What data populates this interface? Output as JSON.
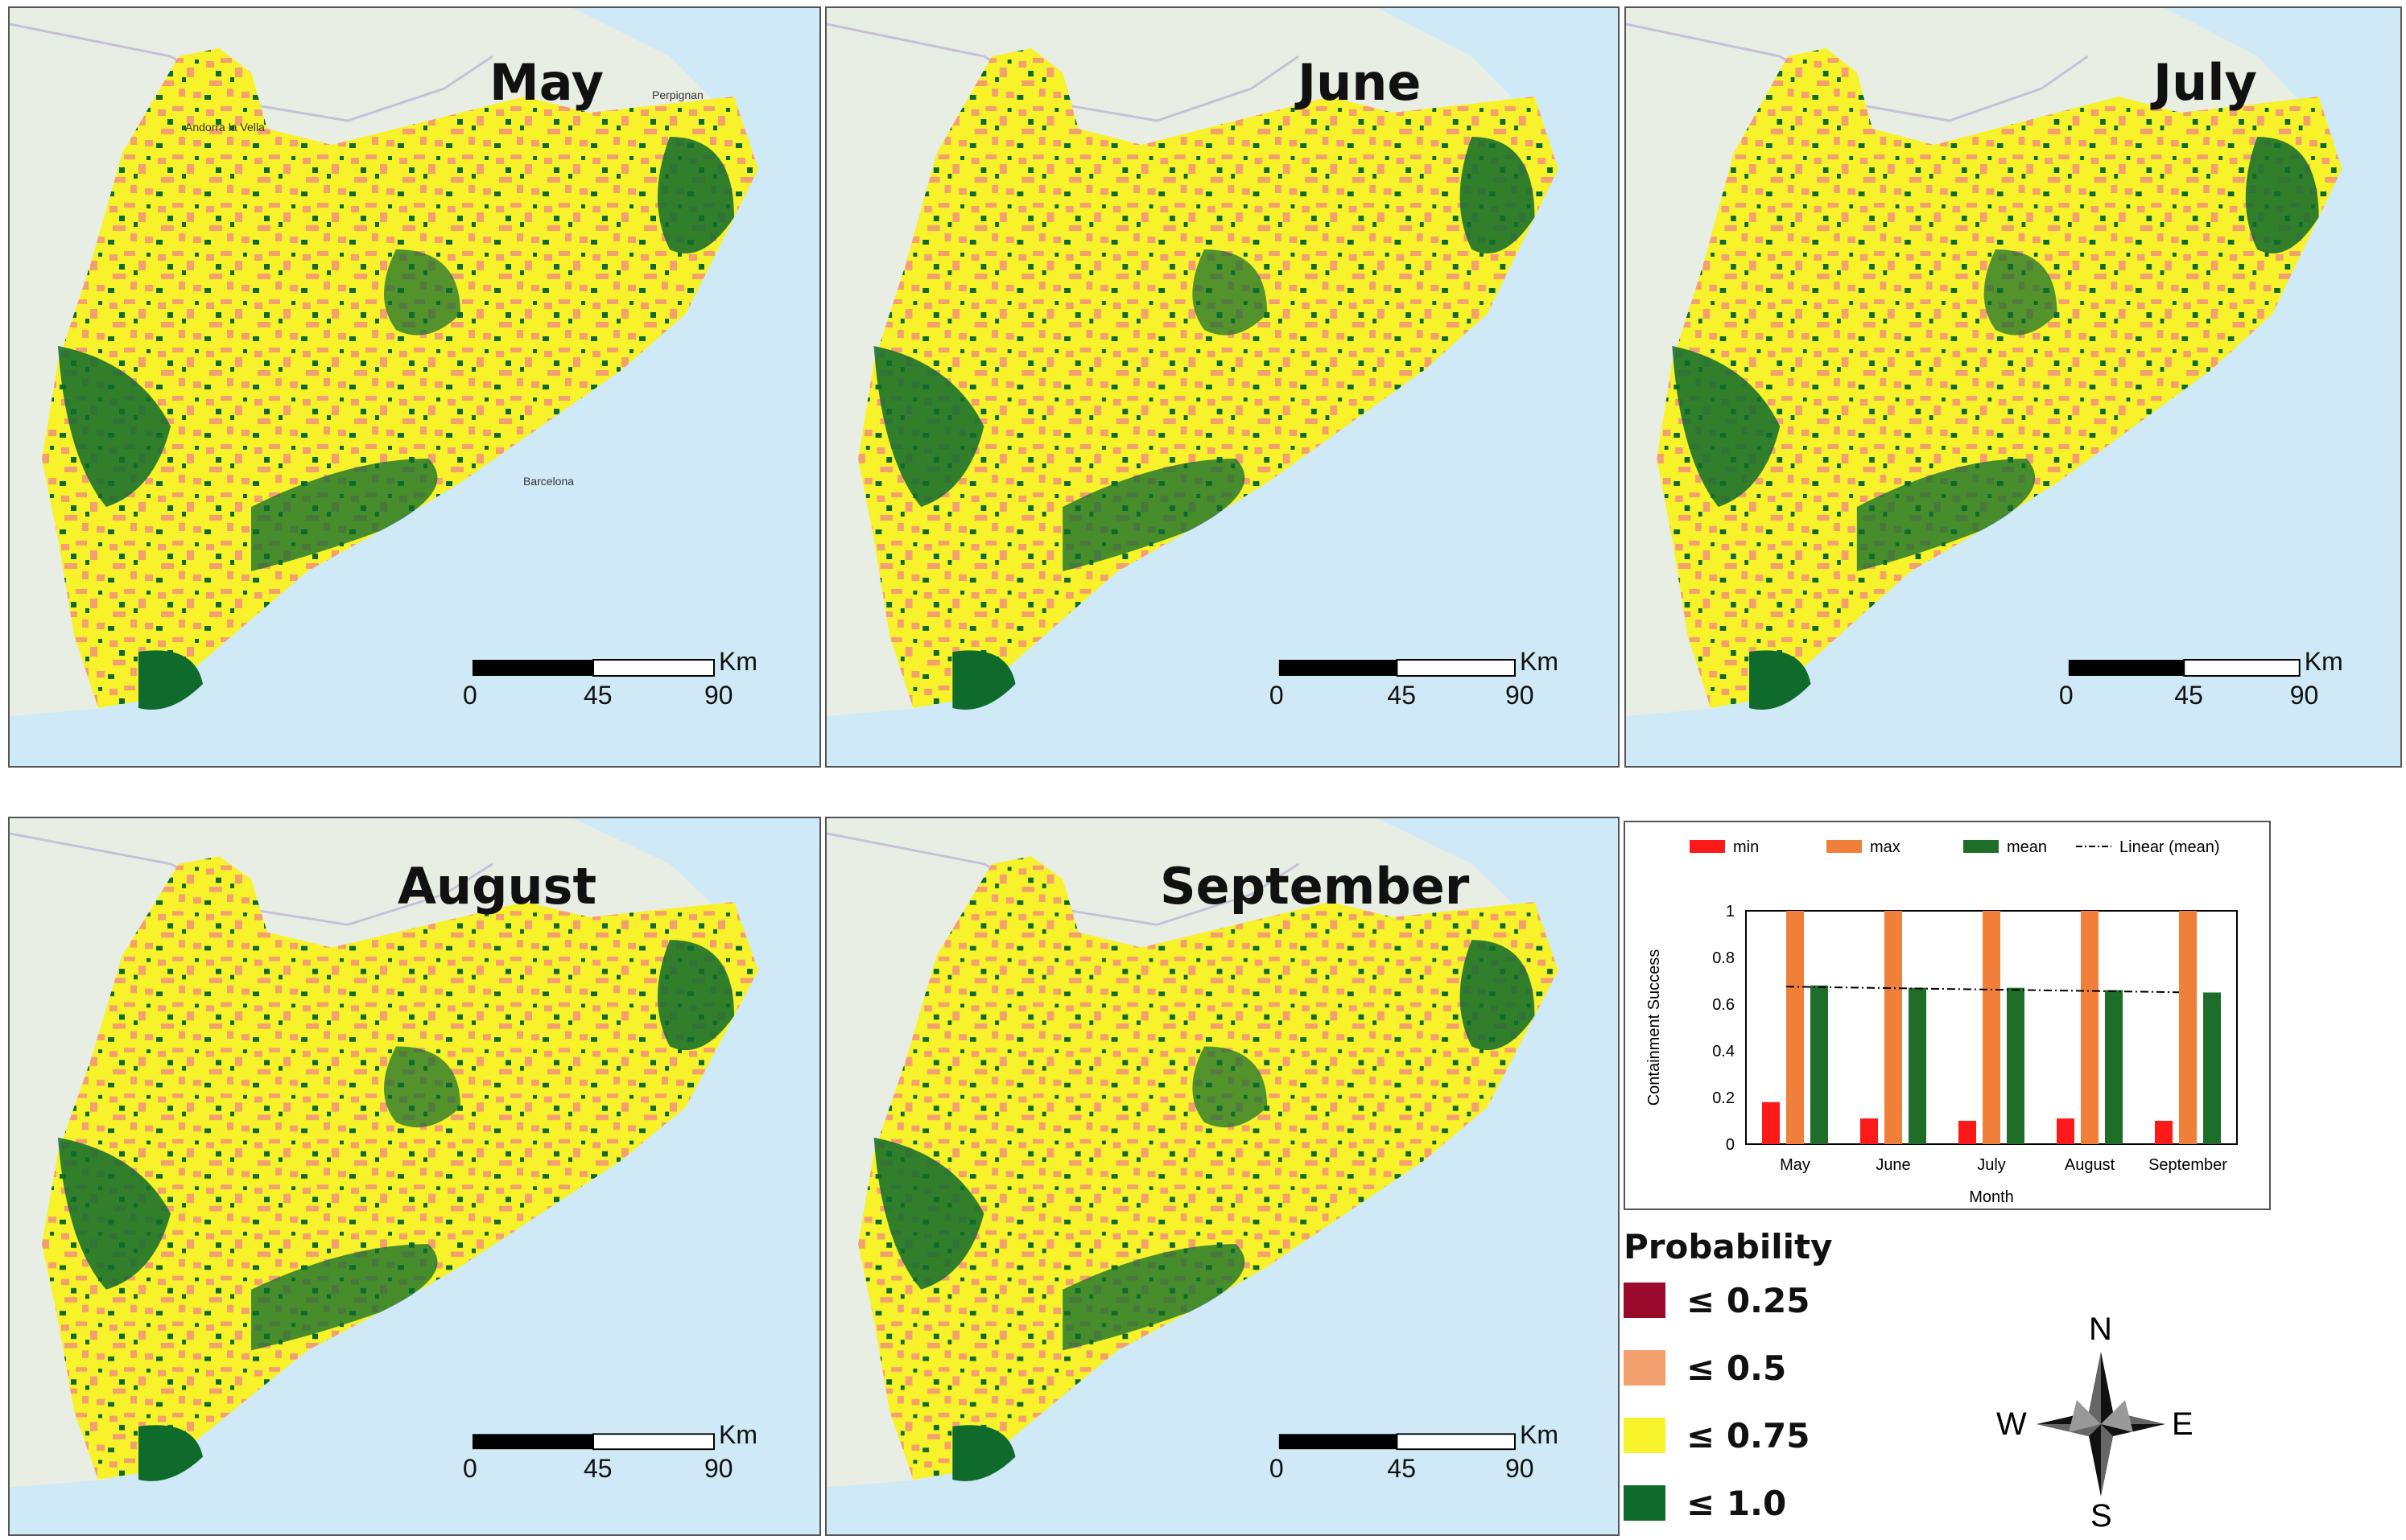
{
  "panels": [
    {
      "month": "May"
    },
    {
      "month": "June"
    },
    {
      "month": "July"
    },
    {
      "month": "August"
    },
    {
      "month": "September"
    }
  ],
  "map_labels": {
    "andorra": "Andorra la Vella",
    "perpignan": "Perpignan",
    "barcelona": "Barcelona"
  },
  "scalebar": {
    "ticks": [
      "0",
      "45",
      "90"
    ],
    "unit": "Km"
  },
  "colors": {
    "very_low": "#9b0a2c",
    "low": "#f4a06e",
    "mid": "#f7f22a",
    "high": "#0e6b2c",
    "sea": "#cfe9f7",
    "terrain": "#e9eee4"
  },
  "legend": {
    "title": "Probability",
    "items": [
      {
        "label": "≤ 0.25",
        "color": "#9b0a2c"
      },
      {
        "label": "≤ 0.5",
        "color": "#f4a06e"
      },
      {
        "label": "≤ 0.75",
        "color": "#f7f22a"
      },
      {
        "label": "≤ 1.0",
        "color": "#0e6b2c"
      }
    ]
  },
  "compass": {
    "n": "N",
    "s": "S",
    "e": "E",
    "w": "W"
  },
  "chart_data": {
    "type": "bar",
    "categories": [
      "May",
      "June",
      "July",
      "August",
      "September"
    ],
    "series": [
      {
        "name": "min",
        "values": [
          0.18,
          0.11,
          0.1,
          0.11,
          0.1
        ],
        "color": "#ff1a1a"
      },
      {
        "name": "max",
        "values": [
          1.0,
          1.0,
          1.0,
          1.0,
          1.0
        ],
        "color": "#f07f3a"
      },
      {
        "name": "mean",
        "values": [
          0.68,
          0.67,
          0.67,
          0.66,
          0.65
        ],
        "color": "#1e6e2a"
      }
    ],
    "trendline": {
      "name": "Linear (mean)",
      "values": [
        0.675,
        0.669,
        0.663,
        0.657,
        0.651
      ]
    },
    "xlabel": "Month",
    "ylabel": "Containment Success",
    "ylim": [
      0,
      1
    ],
    "yticks": [
      "0",
      "0.2",
      "0.4",
      "0.6",
      "0.8",
      "1"
    ],
    "legend_position": "top"
  }
}
